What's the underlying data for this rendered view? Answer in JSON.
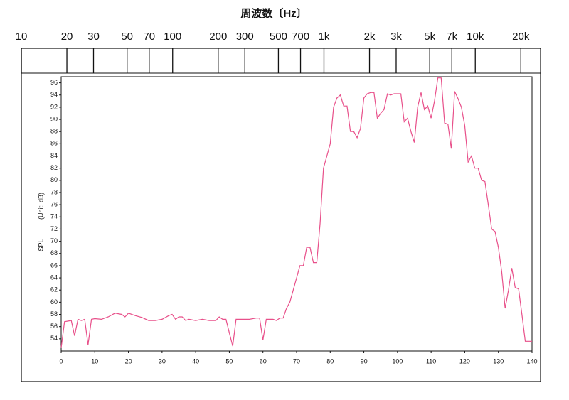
{
  "chart_data": {
    "type": "line",
    "title": "周波数〔Hz〕",
    "ylabel": "SPL",
    "yunit": "(Unit: dB)",
    "color": "#e8508a",
    "x": [
      0,
      1,
      3,
      4,
      5,
      6,
      7,
      8,
      9,
      10,
      12,
      14,
      16,
      18,
      19,
      20,
      22,
      24,
      26,
      28,
      30,
      32,
      33,
      34,
      35,
      36,
      37,
      38,
      40,
      42,
      44,
      46,
      47,
      48,
      49,
      50,
      51,
      52,
      54,
      56,
      58,
      59,
      60,
      61,
      63,
      64,
      65,
      66,
      67,
      68,
      69,
      70,
      71,
      72,
      73,
      74,
      75,
      76,
      77,
      78,
      79,
      80,
      81,
      82,
      83,
      84,
      85,
      86,
      87,
      88,
      89,
      90,
      91,
      92,
      93,
      94,
      95,
      96,
      97,
      98,
      99,
      100,
      101,
      102,
      103,
      104,
      105,
      106,
      107,
      108,
      109,
      110,
      111,
      112,
      113,
      114,
      115,
      116,
      117,
      118,
      119,
      120,
      121,
      122,
      123,
      124,
      125,
      126,
      127,
      128,
      129,
      130,
      131,
      132,
      133,
      134,
      135,
      136,
      137,
      138,
      139,
      140
    ],
    "values": [
      52.5,
      56.8,
      57,
      54.5,
      57.2,
      57,
      57.2,
      53,
      57.2,
      57.3,
      57.2,
      57.6,
      58.2,
      58,
      57.6,
      58.2,
      57.8,
      57.5,
      57,
      57,
      57.2,
      57.8,
      58,
      57.2,
      57.6,
      57.6,
      57,
      57.2,
      57,
      57.2,
      57,
      57,
      57.6,
      57.2,
      57.2,
      55,
      52.8,
      57.2,
      57.2,
      57.2,
      57.4,
      57.4,
      53.8,
      57.2,
      57.2,
      57,
      57.4,
      57.4,
      59,
      60,
      62,
      64,
      66,
      66,
      69,
      69,
      66.5,
      66.5,
      73,
      82,
      84,
      86,
      92,
      93.5,
      94,
      92.2,
      92.2,
      88,
      88,
      87,
      88.5,
      93.5,
      94.2,
      94.4,
      94.4,
      90.2,
      91,
      91.6,
      94.2,
      94,
      94.2,
      94.2,
      94.2,
      89.6,
      90.2,
      88,
      86.2,
      92,
      94.4,
      91.6,
      92.2,
      90.2,
      93,
      96.8,
      96.8,
      89.4,
      89.2,
      85.2,
      94.6,
      93.4,
      92,
      89,
      83,
      84,
      82,
      82,
      80,
      79.8,
      76,
      72,
      71.6,
      69,
      65,
      59,
      62,
      65.6,
      62.4,
      62.2,
      58,
      53.6,
      53.6,
      53.6
    ],
    "xlim": [
      0,
      140
    ],
    "xticks": [
      0,
      10,
      20,
      30,
      40,
      50,
      60,
      70,
      80,
      90,
      100,
      110,
      120,
      130,
      140
    ],
    "ylim": [
      52,
      97
    ],
    "yticks": [
      54,
      56,
      58,
      60,
      62,
      64,
      66,
      68,
      70,
      72,
      74,
      76,
      78,
      80,
      82,
      84,
      86,
      88,
      90,
      92,
      94,
      96
    ],
    "x2lim": [
      10,
      27000
    ],
    "x2log": true,
    "x2ticks": [
      10,
      20,
      30,
      50,
      70,
      100,
      200,
      300,
      500,
      700,
      {
        "value": 1000,
        "label": "1k"
      },
      {
        "value": 2000,
        "label": "2k"
      },
      {
        "value": 3000,
        "label": "3k"
      },
      {
        "value": 5000,
        "label": "5k"
      },
      {
        "value": 7000,
        "label": "7k"
      },
      {
        "value": 10000,
        "label": "10k"
      },
      {
        "value": 20000,
        "label": "20k"
      }
    ]
  }
}
